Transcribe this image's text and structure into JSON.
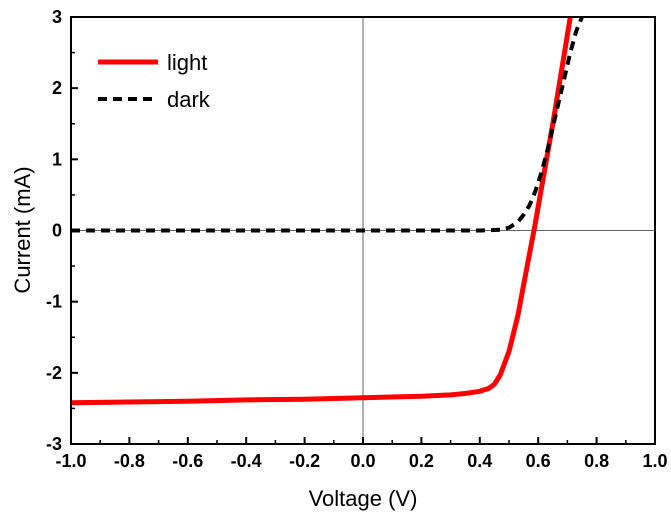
{
  "chart_data": {
    "type": "line",
    "title": "",
    "xlabel": "Voltage (V)",
    "ylabel": "Current (mA)",
    "xlim": [
      -1.0,
      1.0
    ],
    "ylim": [
      -3,
      3
    ],
    "x_ticks": [
      -1.0,
      -0.8,
      -0.6,
      -0.4,
      -0.2,
      0.0,
      0.2,
      0.4,
      0.6,
      0.8,
      1.0
    ],
    "x_tick_labels": [
      "-1.0",
      "-0.8",
      "-0.6",
      "-0.4",
      "-0.2",
      "0.0",
      "0.2",
      "0.4",
      "0.6",
      "0.8",
      "1.0"
    ],
    "y_ticks": [
      -3,
      -2,
      -1,
      0,
      1,
      2,
      3
    ],
    "y_tick_labels": [
      "-3",
      "-2",
      "-1",
      "0",
      "1",
      "2",
      "3"
    ],
    "grid": false,
    "zero_lines": true,
    "legend_position": "top-left",
    "series": [
      {
        "name": "light",
        "style": "solid",
        "color": "#ff0000",
        "x": [
          -1.0,
          -0.8,
          -0.6,
          -0.4,
          -0.2,
          0.0,
          0.2,
          0.3,
          0.35,
          0.4,
          0.43,
          0.45,
          0.47,
          0.5,
          0.53,
          0.56,
          0.59,
          0.62,
          0.65,
          0.68,
          0.7,
          0.71
        ],
        "y": [
          -2.42,
          -2.41,
          -2.4,
          -2.38,
          -2.37,
          -2.35,
          -2.33,
          -2.31,
          -2.29,
          -2.26,
          -2.22,
          -2.16,
          -2.03,
          -1.7,
          -1.2,
          -0.55,
          0.1,
          0.8,
          1.5,
          2.25,
          2.75,
          3.0
        ]
      },
      {
        "name": "dark",
        "style": "dashed",
        "color": "#000000",
        "x": [
          -1.0,
          -0.6,
          -0.2,
          0.0,
          0.2,
          0.4,
          0.47,
          0.5,
          0.53,
          0.55,
          0.57,
          0.59,
          0.61,
          0.63,
          0.65,
          0.67,
          0.69,
          0.71,
          0.73,
          0.75
        ],
        "y": [
          0.0,
          0.0,
          0.0,
          0.0,
          0.0,
          0.0,
          0.01,
          0.04,
          0.12,
          0.22,
          0.35,
          0.55,
          0.8,
          1.1,
          1.45,
          1.8,
          2.15,
          2.5,
          2.8,
          3.0
        ]
      }
    ]
  }
}
